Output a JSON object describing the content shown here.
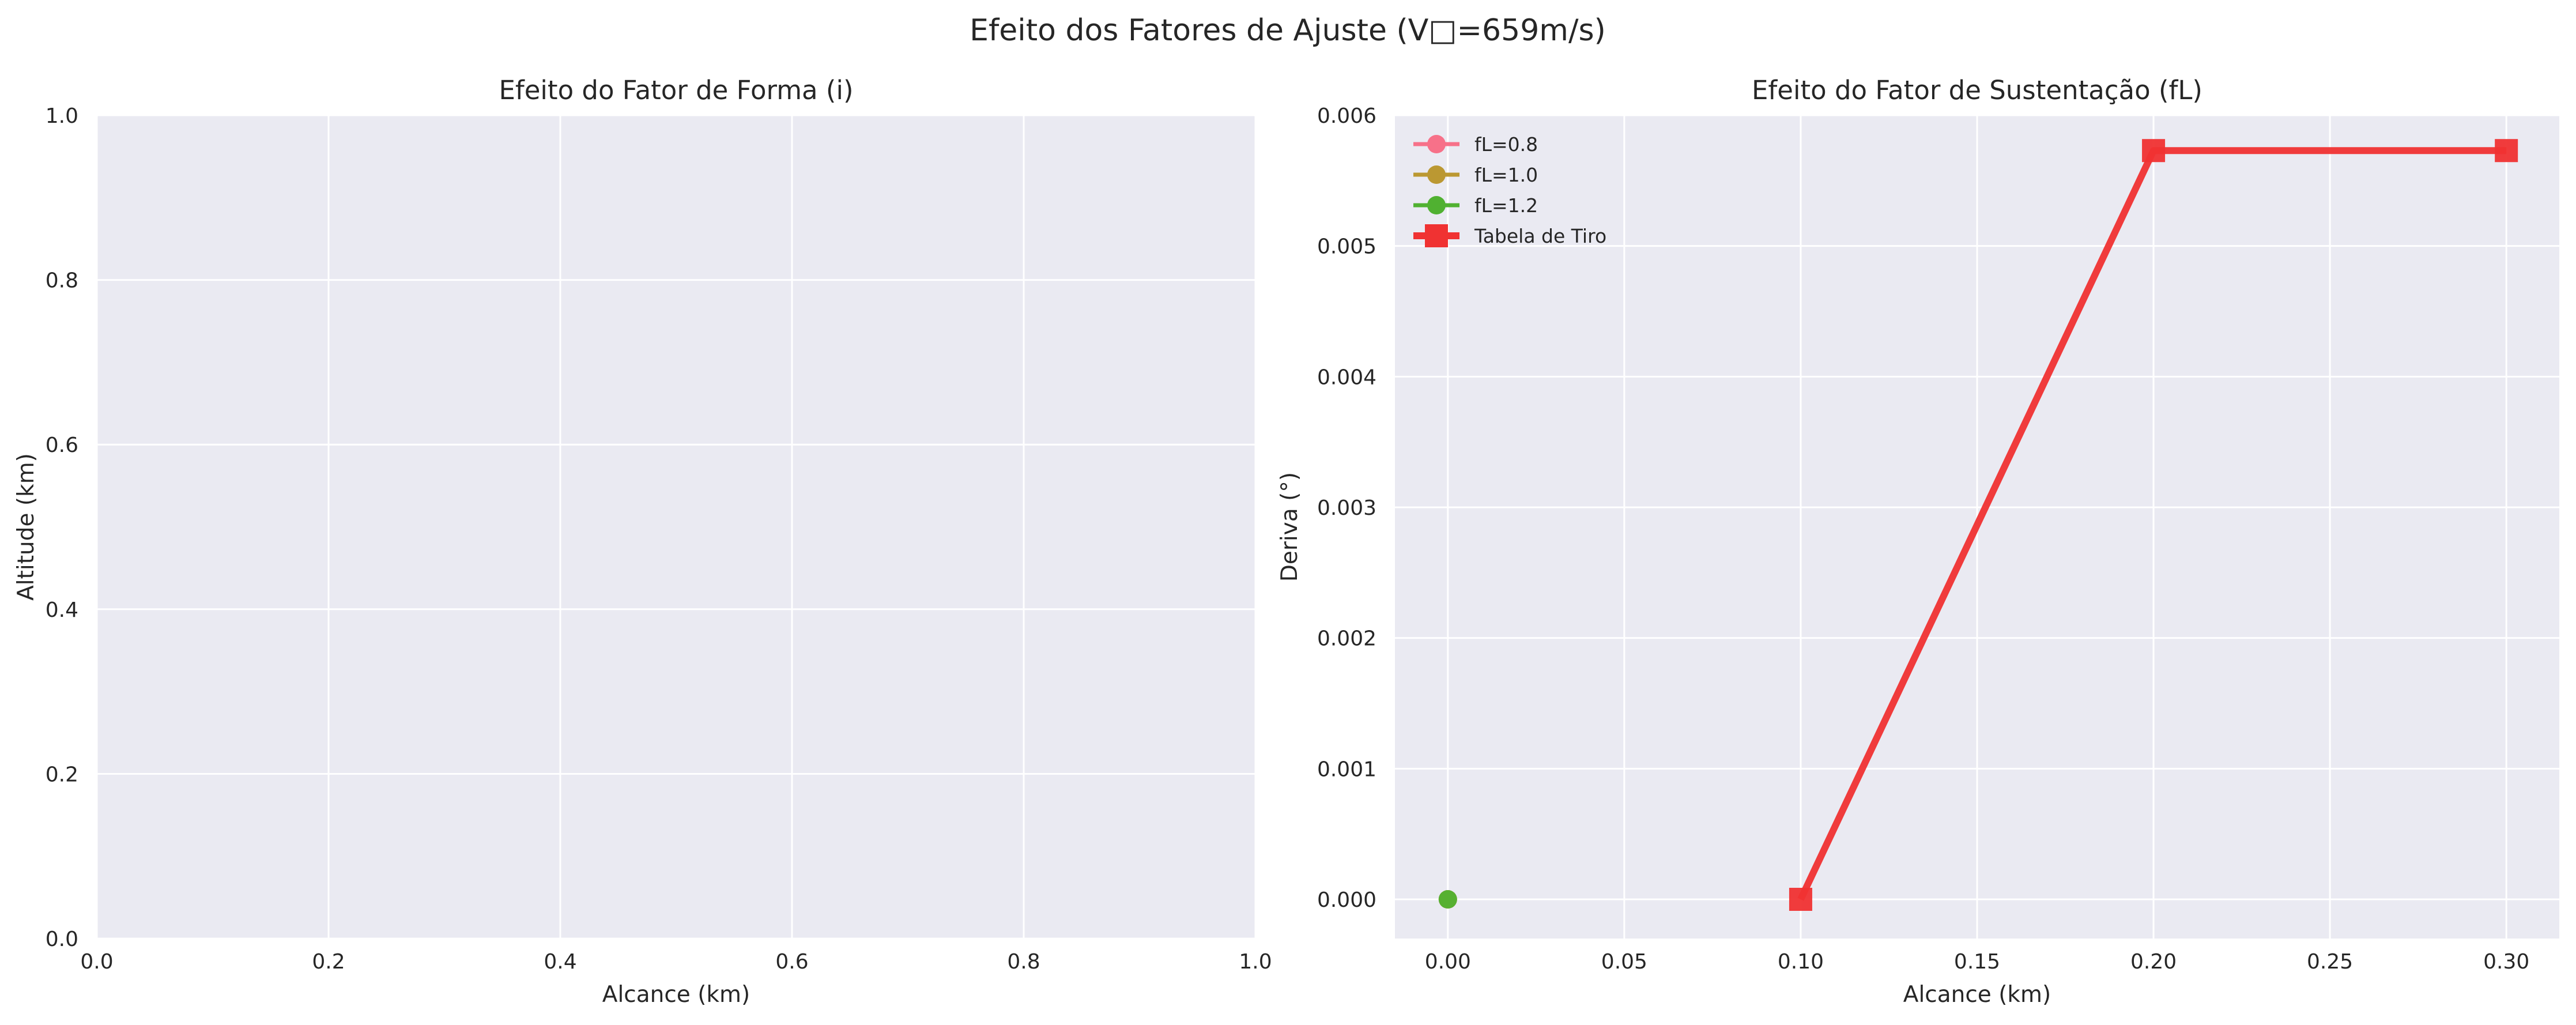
{
  "figure": {
    "suptitle": "Efeito dos Fatores de Ajuste (V□=659m/s)",
    "colors": {
      "axes_bg": "#eaeaf2",
      "grid": "#ffffff",
      "text": "#262626"
    }
  },
  "chart_data": [
    {
      "type": "line",
      "title": "Efeito do Fator de Forma (i)",
      "xlabel": "Alcance (km)",
      "ylabel": "Altitude (km)",
      "xlim": [
        0.0,
        1.0
      ],
      "ylim": [
        0.0,
        1.0
      ],
      "xticks": [
        0.0,
        0.2,
        0.4,
        0.6,
        0.8,
        1.0
      ],
      "xtick_labels": [
        "0.0",
        "0.2",
        "0.4",
        "0.6",
        "0.8",
        "1.0"
      ],
      "yticks": [
        0.0,
        0.2,
        0.4,
        0.6,
        0.8,
        1.0
      ],
      "ytick_labels": [
        "0.0",
        "0.2",
        "0.4",
        "0.6",
        "0.8",
        "1.0"
      ],
      "grid": true,
      "series": []
    },
    {
      "type": "line",
      "title": "Efeito do Fator de Sustentação (fL)",
      "xlabel": "Alcance (km)",
      "ylabel": "Deriva (°)",
      "xlim": [
        -0.015,
        0.315
      ],
      "ylim": [
        -0.0003,
        0.006
      ],
      "xticks": [
        0.0,
        0.05,
        0.1,
        0.15,
        0.2,
        0.25,
        0.3
      ],
      "xtick_labels": [
        "0.00",
        "0.05",
        "0.10",
        "0.15",
        "0.20",
        "0.25",
        "0.30"
      ],
      "yticks": [
        0.0,
        0.001,
        0.002,
        0.003,
        0.004,
        0.005,
        0.006
      ],
      "ytick_labels": [
        "0.000",
        "0.001",
        "0.002",
        "0.003",
        "0.004",
        "0.005",
        "0.006"
      ],
      "grid": true,
      "legend": "top-left",
      "series": [
        {
          "name": "fL=0.8",
          "color": "#f77189",
          "marker": "circle",
          "x": [
            0.0
          ],
          "y": [
            0.0
          ]
        },
        {
          "name": "fL=1.0",
          "color": "#bb9832",
          "marker": "circle",
          "x": [
            0.0
          ],
          "y": [
            0.0
          ]
        },
        {
          "name": "fL=1.2",
          "color": "#50b131",
          "marker": "circle",
          "x": [
            0.0
          ],
          "y": [
            0.0
          ]
        },
        {
          "name": "Tabela de Tiro",
          "color": "#f03232",
          "marker": "square",
          "x": [
            0.1,
            0.2,
            0.3
          ],
          "y": [
            0.0,
            0.00573,
            0.00573
          ]
        }
      ]
    }
  ]
}
